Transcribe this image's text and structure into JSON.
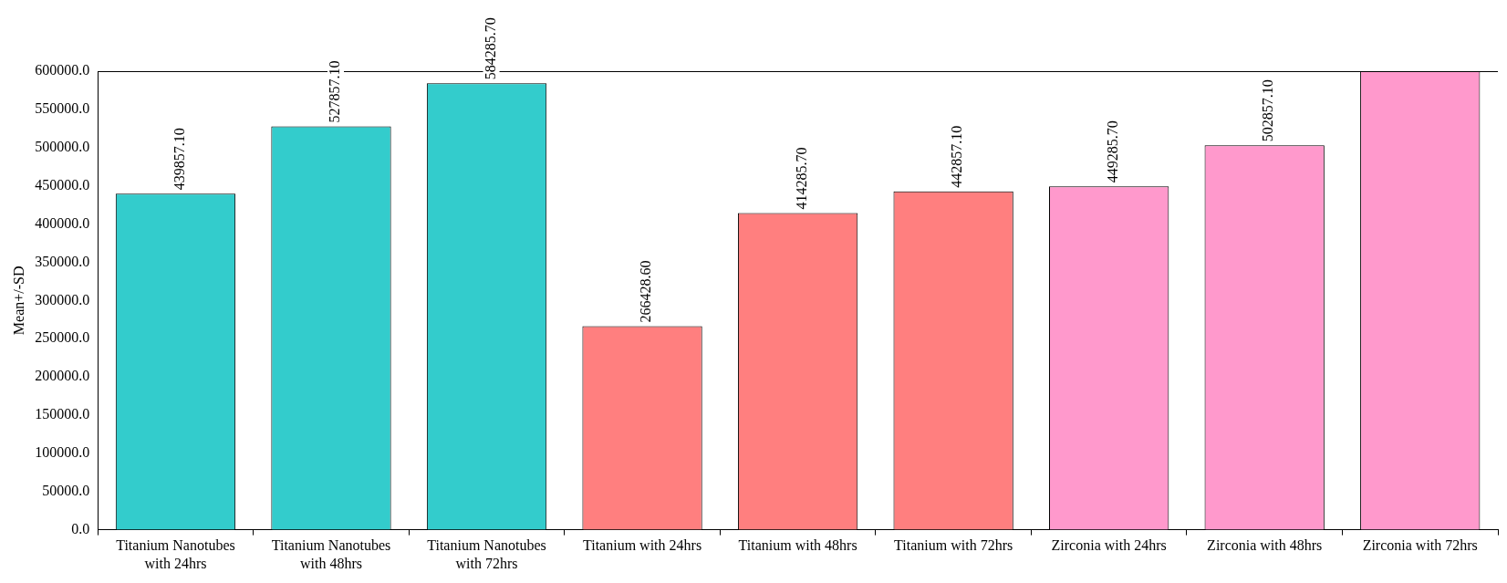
{
  "chart_data": {
    "type": "bar",
    "ylabel": "Mean+/-SD",
    "categories": [
      "Titanium Nanotubes with 24hrs",
      "Titanium Nanotubes with 48hrs",
      "Titanium Nanotubes with 72hrs",
      "Titanium with 24hrs",
      "Titanium with 48hrs",
      "Titanium with 72hrs",
      "Zirconia with 24hrs",
      "Zirconia with 48hrs",
      "Zirconia with 72hrs"
    ],
    "values": [
      439857.1,
      527857.1,
      584285.7,
      266428.6,
      414285.7,
      442857.1,
      449285.7,
      502857.1,
      600000
    ],
    "value_labels": [
      "439857.10",
      "527857.10",
      "584285.70",
      "266428.60",
      "414285.70",
      "442857.10",
      "449285.70",
      "502857.10",
      null
    ],
    "colors": [
      "#33cccc",
      "#33cccc",
      "#33cccc",
      "#ff7f7f",
      "#ff7f7f",
      "#ff7f7f",
      "#ff99cc",
      "#ff99cc",
      "#ff99cc"
    ],
    "ylim": [
      0,
      600000
    ],
    "yticks": [
      {
        "value": 0,
        "label": "0.0"
      },
      {
        "value": 50000,
        "label": "50000.0"
      },
      {
        "value": 100000,
        "label": "100000.0"
      },
      {
        "value": 150000,
        "label": "150000.0"
      },
      {
        "value": 200000,
        "label": "200000.0"
      },
      {
        "value": 250000,
        "label": "250000.0"
      },
      {
        "value": 300000,
        "label": "300000.0"
      },
      {
        "value": 350000,
        "label": "350000.0"
      },
      {
        "value": 400000,
        "label": "400000.0"
      },
      {
        "value": 450000,
        "label": "450000.0"
      },
      {
        "value": 500000,
        "label": "500000.0"
      },
      {
        "value": 550000,
        "label": "550000.0"
      },
      {
        "value": 600000,
        "label": "600000.0"
      }
    ],
    "grid": false,
    "legend": false
  }
}
